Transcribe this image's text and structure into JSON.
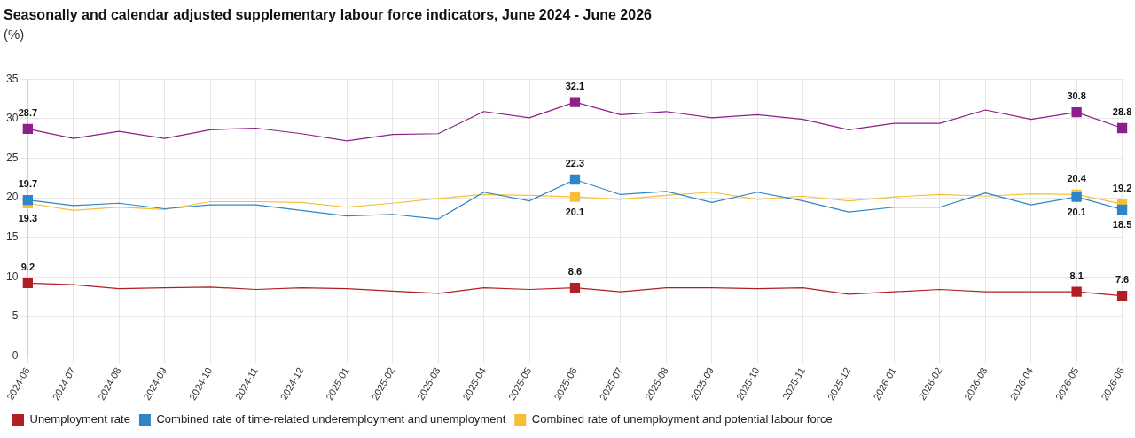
{
  "chart_data": {
    "type": "line",
    "title": "Seasonally and calendar adjusted supplementary labour force indicators, June 2024 - June 2026",
    "subtitle": "(%)",
    "categories": [
      "2024-06",
      "2024-07",
      "2024-08",
      "2024-09",
      "2024-10",
      "2024-11",
      "2024-12",
      "2025-01",
      "2025-02",
      "2025-03",
      "2025-04",
      "2025-05",
      "2025-06",
      "2025-07",
      "2025-08",
      "2025-09",
      "2025-10",
      "2025-11",
      "2025-12",
      "2026-01",
      "2026-02",
      "2026-03",
      "2026-04",
      "2026-05",
      "2026-06"
    ],
    "series": [
      {
        "name": "Unemployment rate",
        "color": "#b11f24",
        "values": [
          9.2,
          9.0,
          8.5,
          8.6,
          8.7,
          8.4,
          8.6,
          8.5,
          8.2,
          7.9,
          8.6,
          8.4,
          8.6,
          8.1,
          8.6,
          8.6,
          8.5,
          8.6,
          7.8,
          8.1,
          8.4,
          8.1,
          8.1,
          8.1,
          7.6
        ],
        "value_labels": [
          "9.2",
          null,
          null,
          null,
          null,
          null,
          null,
          null,
          null,
          null,
          null,
          null,
          "8.6",
          null,
          null,
          null,
          null,
          null,
          null,
          null,
          null,
          null,
          null,
          "8.1",
          "7.6"
        ]
      },
      {
        "name": "Combined rate of time-related underemployment and unemployment",
        "color": "#2e86c8",
        "values": [
          19.7,
          19.0,
          19.3,
          18.6,
          19.1,
          19.1,
          18.4,
          17.7,
          17.9,
          17.3,
          20.7,
          19.6,
          22.3,
          20.4,
          20.8,
          19.4,
          20.7,
          19.6,
          18.2,
          18.8,
          18.8,
          20.6,
          19.1,
          20.1,
          18.5
        ],
        "value_labels": [
          "19.7",
          null,
          null,
          null,
          null,
          null,
          null,
          null,
          null,
          null,
          null,
          null,
          "22.3",
          null,
          null,
          null,
          null,
          null,
          null,
          null,
          null,
          null,
          null,
          "20.1",
          "18.5"
        ]
      },
      {
        "name": "Combined rate of unemployment and potential labour force",
        "color": "#f7c034",
        "values": [
          19.3,
          18.4,
          18.8,
          18.5,
          19.5,
          19.5,
          19.4,
          18.8,
          19.3,
          19.9,
          20.4,
          20.3,
          20.1,
          19.8,
          20.3,
          20.7,
          19.8,
          20.2,
          19.6,
          20.1,
          20.4,
          20.2,
          20.5,
          20.4,
          19.2
        ],
        "value_labels": [
          "19.3",
          null,
          null,
          null,
          null,
          null,
          null,
          null,
          null,
          null,
          null,
          null,
          "20.1",
          null,
          null,
          null,
          null,
          null,
          null,
          null,
          null,
          null,
          null,
          "20.4",
          "19.2"
        ]
      },
      {
        "color": "#8e1f8a",
        "values": [
          28.7,
          27.5,
          28.4,
          27.5,
          28.6,
          28.8,
          28.1,
          27.2,
          28.0,
          28.1,
          30.9,
          30.1,
          32.1,
          30.5,
          30.9,
          30.1,
          30.5,
          29.9,
          28.6,
          29.4,
          29.4,
          31.1,
          29.9,
          30.8,
          28.8
        ],
        "value_labels": [
          "28.7",
          null,
          null,
          null,
          null,
          null,
          null,
          null,
          null,
          null,
          null,
          null,
          "32.1",
          null,
          null,
          null,
          null,
          null,
          null,
          null,
          null,
          null,
          null,
          "30.8",
          "28.8"
        ]
      }
    ],
    "ylim": [
      0,
      35
    ],
    "yticks": [
      0,
      5,
      10,
      15,
      20,
      25,
      30,
      35
    ],
    "grid": true,
    "legend": "bottom",
    "line_style": "solid"
  }
}
